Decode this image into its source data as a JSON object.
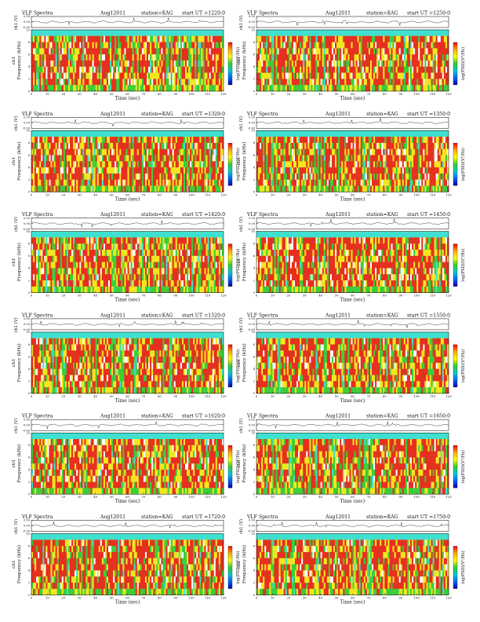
{
  "page": {
    "title_prefix": "VLF Spectra",
    "date": "Aug12011",
    "station": "station=KAG",
    "start_label": "start UT =",
    "ch_label": "ch1 (V)",
    "ch_name": "ch1",
    "freq_label": "Frequency (kHz)",
    "time_label": "Time (sec)",
    "colorbar_label": "log(PSD)(V²/Hz)"
  },
  "colors": {
    "spectrogram_high": "#e53020",
    "spectrogram_mid": "#f2e620",
    "spectrogram_low": "#3ccd3c",
    "spectrogram_floor": "#40e0d0",
    "trace": "#222222",
    "colorbar_stops": [
      "#ff0000",
      "#ffaa00",
      "#ffff00",
      "#33cc33",
      "#00cccc",
      "#0066ff",
      "#0000aa"
    ]
  },
  "chart_data": [
    {
      "type": "heatmap",
      "start_ut": "1220:0",
      "xlim": [
        0,
        120
      ],
      "ylim": [
        0,
        10
      ],
      "trace_ylim": [
        -0.5,
        0.5
      ],
      "trace_ticks": [
        "0.50",
        "0.00",
        "-0.50"
      ],
      "x_ticks": [
        0,
        10,
        20,
        30,
        40,
        50,
        60,
        70,
        80,
        90,
        100,
        110,
        120
      ],
      "y_ticks": [
        0,
        2,
        4,
        6,
        8,
        10
      ],
      "floor_band_khz": [
        9,
        10
      ]
    },
    {
      "type": "heatmap",
      "start_ut": "1250:0",
      "xlim": [
        0,
        120
      ],
      "ylim": [
        0,
        10
      ],
      "trace_ylim": [
        -0.5,
        0.5
      ],
      "trace_ticks": [
        "0.50",
        "0.00",
        "-0.50"
      ],
      "x_ticks": [
        0,
        10,
        20,
        30,
        40,
        50,
        60,
        70,
        80,
        90,
        100,
        110,
        120
      ],
      "y_ticks": [
        0,
        2,
        4,
        6,
        8,
        10
      ],
      "floor_band_khz": [
        9,
        10
      ]
    },
    {
      "type": "heatmap",
      "start_ut": "1320:0",
      "xlim": [
        0,
        120
      ],
      "ylim": [
        0,
        10
      ],
      "trace_ylim": [
        -0.5,
        0.5
      ],
      "trace_ticks": [
        "0.50",
        "0.00",
        "-0.50"
      ],
      "x_ticks": [
        0,
        10,
        20,
        30,
        40,
        50,
        60,
        70,
        80,
        90,
        100,
        110,
        120
      ],
      "y_ticks": [
        0,
        2,
        4,
        6,
        8,
        10
      ],
      "floor_band_khz": [
        9,
        10
      ]
    },
    {
      "type": "heatmap",
      "start_ut": "1350:0",
      "xlim": [
        0,
        120
      ],
      "ylim": [
        0,
        10
      ],
      "trace_ylim": [
        -0.5,
        0.5
      ],
      "trace_ticks": [
        "0.50",
        "0.00",
        "-0.50"
      ],
      "x_ticks": [
        0,
        10,
        20,
        30,
        40,
        50,
        60,
        70,
        80,
        90,
        100,
        110,
        120
      ],
      "y_ticks": [
        0,
        2,
        4,
        6,
        8,
        10
      ],
      "floor_band_khz": [
        9,
        10
      ]
    },
    {
      "type": "heatmap",
      "start_ut": "1420:0",
      "xlim": [
        0,
        120
      ],
      "ylim": [
        0,
        10
      ],
      "trace_ylim": [
        -0.5,
        0.5
      ],
      "trace_ticks": [
        "0.50",
        "0.00",
        "-0.50"
      ],
      "x_ticks": [
        0,
        10,
        20,
        30,
        40,
        50,
        60,
        70,
        80,
        90,
        100,
        110,
        120
      ],
      "y_ticks": [
        0,
        2,
        4,
        6,
        8,
        10
      ],
      "floor_band_khz": [
        9,
        10
      ]
    },
    {
      "type": "heatmap",
      "start_ut": "1450:0",
      "xlim": [
        0,
        120
      ],
      "ylim": [
        0,
        10
      ],
      "trace_ylim": [
        -0.5,
        0.5
      ],
      "trace_ticks": [
        "0.50",
        "0.00",
        "-0.50"
      ],
      "x_ticks": [
        0,
        10,
        20,
        30,
        40,
        50,
        60,
        70,
        80,
        90,
        100,
        110,
        120
      ],
      "y_ticks": [
        0,
        2,
        4,
        6,
        8,
        10
      ],
      "floor_band_khz": [
        9,
        10
      ]
    },
    {
      "type": "heatmap",
      "start_ut": "1520:0",
      "xlim": [
        0,
        120
      ],
      "ylim": [
        0,
        10
      ],
      "trace_ylim": [
        -0.5,
        0.5
      ],
      "trace_ticks": [
        "0.50",
        "0.00",
        "-0.50"
      ],
      "x_ticks": [
        0,
        10,
        20,
        30,
        40,
        50,
        60,
        70,
        80,
        90,
        100,
        110,
        120
      ],
      "y_ticks": [
        0,
        2,
        4,
        6,
        8,
        10
      ],
      "floor_band_khz": [
        9,
        10
      ]
    },
    {
      "type": "heatmap",
      "start_ut": "1550:0",
      "xlim": [
        0,
        120
      ],
      "ylim": [
        0,
        10
      ],
      "trace_ylim": [
        -0.5,
        0.5
      ],
      "trace_ticks": [
        "0.50",
        "0.00",
        "-0.50"
      ],
      "x_ticks": [
        0,
        10,
        20,
        30,
        40,
        50,
        60,
        70,
        80,
        90,
        100,
        110,
        120
      ],
      "y_ticks": [
        0,
        2,
        4,
        6,
        8,
        10
      ],
      "floor_band_khz": [
        9,
        10
      ]
    },
    {
      "type": "heatmap",
      "start_ut": "1620:0",
      "xlim": [
        0,
        120
      ],
      "ylim": [
        0,
        10
      ],
      "trace_ylim": [
        -0.5,
        0.5
      ],
      "trace_ticks": [
        "0.50",
        "0.00",
        "-0.50"
      ],
      "x_ticks": [
        0,
        10,
        20,
        30,
        40,
        50,
        60,
        70,
        80,
        90,
        100,
        110,
        120
      ],
      "y_ticks": [
        0,
        2,
        4,
        6,
        8,
        10
      ],
      "floor_band_khz": [
        9,
        10
      ]
    },
    {
      "type": "heatmap",
      "start_ut": "1650:0",
      "xlim": [
        0,
        120
      ],
      "ylim": [
        0,
        10
      ],
      "trace_ylim": [
        -0.5,
        0.5
      ],
      "trace_ticks": [
        "0.50",
        "0.00",
        "-0.50"
      ],
      "x_ticks": [
        0,
        10,
        20,
        30,
        40,
        50,
        60,
        70,
        80,
        90,
        100,
        110,
        120
      ],
      "y_ticks": [
        0,
        2,
        4,
        6,
        8,
        10
      ],
      "floor_band_khz": [
        9,
        10
      ]
    },
    {
      "type": "heatmap",
      "start_ut": "1720:0",
      "xlim": [
        0,
        120
      ],
      "ylim": [
        0,
        10
      ],
      "trace_ylim": [
        -0.5,
        0.5
      ],
      "trace_ticks": [
        "0.50",
        "0.00",
        "-0.50"
      ],
      "x_ticks": [
        0,
        10,
        20,
        30,
        40,
        50,
        60,
        70,
        80,
        90,
        100,
        110,
        120
      ],
      "y_ticks": [
        0,
        2,
        4,
        6,
        8,
        10
      ],
      "floor_band_khz": [
        9,
        10
      ]
    },
    {
      "type": "heatmap",
      "start_ut": "1750:0",
      "xlim": [
        0,
        120
      ],
      "ylim": [
        0,
        10
      ],
      "trace_ylim": [
        -0.5,
        0.5
      ],
      "trace_ticks": [
        "0.50",
        "0.00",
        "-0.50"
      ],
      "x_ticks": [
        0,
        10,
        20,
        30,
        40,
        50,
        60,
        70,
        80,
        90,
        100,
        110,
        120
      ],
      "y_ticks": [
        0,
        2,
        4,
        6,
        8,
        10
      ],
      "floor_band_khz": [
        9,
        10
      ]
    }
  ]
}
